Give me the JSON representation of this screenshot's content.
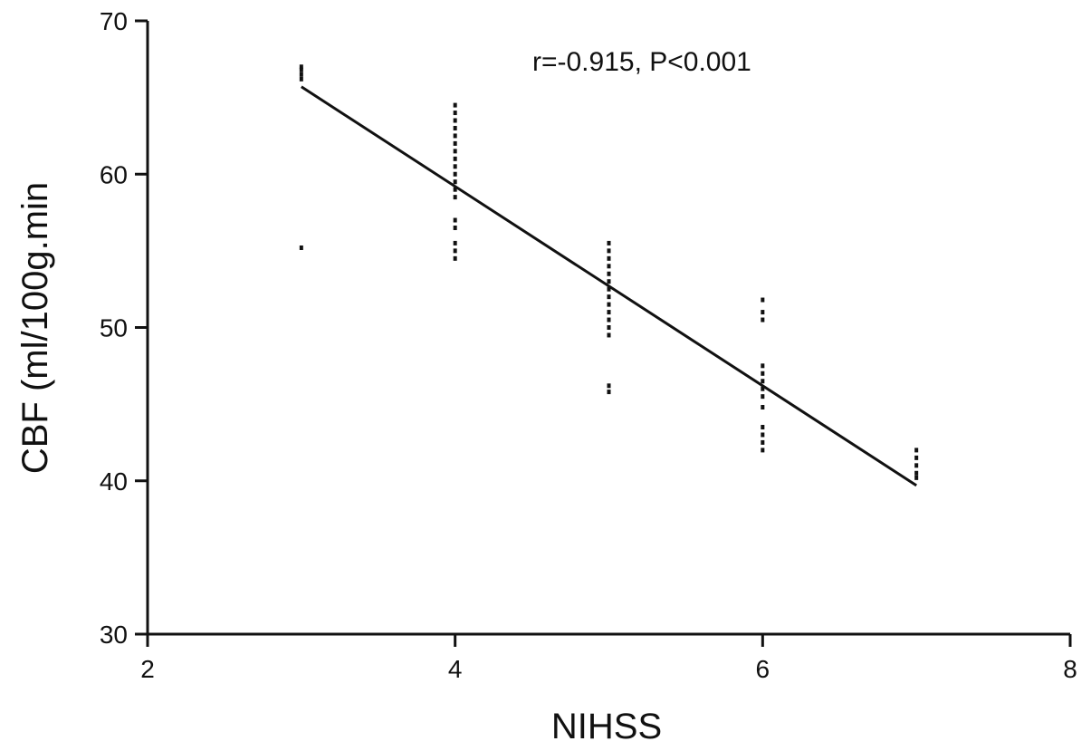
{
  "chart_data": {
    "type": "scatter",
    "title": "",
    "xlabel": "NIHSS",
    "ylabel": "CBF (ml/100g.min",
    "xlim": [
      2,
      8
    ],
    "ylim": [
      30,
      70
    ],
    "xticks": [
      2,
      4,
      6,
      8
    ],
    "yticks": [
      30,
      40,
      50,
      60,
      70
    ],
    "xtick_labels": [
      "2",
      "4",
      "6",
      "8"
    ],
    "ytick_labels": [
      "30",
      "40",
      "50",
      "60",
      "70"
    ],
    "annotation": "r=-0.915,  P<0.001",
    "grid": false,
    "points": [
      {
        "x": 3,
        "y": 67.0
      },
      {
        "x": 3,
        "y": 66.8
      },
      {
        "x": 3,
        "y": 66.5
      },
      {
        "x": 3,
        "y": 66.2
      },
      {
        "x": 3,
        "y": 55.2
      },
      {
        "x": 4,
        "y": 64.5
      },
      {
        "x": 4,
        "y": 64.0
      },
      {
        "x": 4,
        "y": 63.5
      },
      {
        "x": 4,
        "y": 63.0
      },
      {
        "x": 4,
        "y": 62.5
      },
      {
        "x": 4,
        "y": 62.0
      },
      {
        "x": 4,
        "y": 61.5
      },
      {
        "x": 4,
        "y": 61.0
      },
      {
        "x": 4,
        "y": 60.5
      },
      {
        "x": 4,
        "y": 60.0
      },
      {
        "x": 4,
        "y": 59.5
      },
      {
        "x": 4,
        "y": 59.0
      },
      {
        "x": 4,
        "y": 58.5
      },
      {
        "x": 4,
        "y": 57.0
      },
      {
        "x": 4,
        "y": 56.5
      },
      {
        "x": 4,
        "y": 55.5
      },
      {
        "x": 4,
        "y": 55.0
      },
      {
        "x": 4,
        "y": 54.5
      },
      {
        "x": 5,
        "y": 55.5
      },
      {
        "x": 5,
        "y": 55.0
      },
      {
        "x": 5,
        "y": 54.5
      },
      {
        "x": 5,
        "y": 54.0
      },
      {
        "x": 5,
        "y": 53.5
      },
      {
        "x": 5,
        "y": 53.0
      },
      {
        "x": 5,
        "y": 52.5
      },
      {
        "x": 5,
        "y": 52.0
      },
      {
        "x": 5,
        "y": 51.5
      },
      {
        "x": 5,
        "y": 51.0
      },
      {
        "x": 5,
        "y": 50.5
      },
      {
        "x": 5,
        "y": 50.0
      },
      {
        "x": 5,
        "y": 49.5
      },
      {
        "x": 5,
        "y": 46.2
      },
      {
        "x": 5,
        "y": 45.8
      },
      {
        "x": 6,
        "y": 51.8
      },
      {
        "x": 6,
        "y": 51.0
      },
      {
        "x": 6,
        "y": 50.5
      },
      {
        "x": 6,
        "y": 47.5
      },
      {
        "x": 6,
        "y": 47.0
      },
      {
        "x": 6,
        "y": 46.5
      },
      {
        "x": 6,
        "y": 46.0
      },
      {
        "x": 6,
        "y": 45.5
      },
      {
        "x": 6,
        "y": 44.8
      },
      {
        "x": 6,
        "y": 43.5
      },
      {
        "x": 6,
        "y": 43.0
      },
      {
        "x": 6,
        "y": 42.5
      },
      {
        "x": 6,
        "y": 42.0
      },
      {
        "x": 7,
        "y": 42.0
      },
      {
        "x": 7,
        "y": 41.5
      },
      {
        "x": 7,
        "y": 41.0
      },
      {
        "x": 7,
        "y": 40.5
      },
      {
        "x": 7,
        "y": 40.2
      }
    ],
    "fit_line": {
      "x": [
        3,
        7
      ],
      "y": [
        65.7,
        39.7
      ]
    },
    "colors": {
      "points": "#111111",
      "line": "#111111",
      "axes": "#111111"
    }
  }
}
